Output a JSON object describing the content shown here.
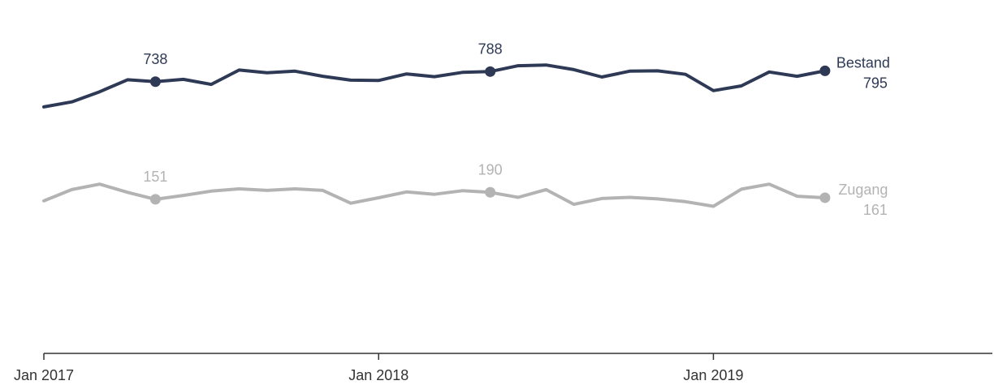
{
  "chart_data": {
    "type": "line",
    "x": [
      "2017-01",
      "2017-02",
      "2017-03",
      "2017-04",
      "2017-05",
      "2017-06",
      "2017-07",
      "2017-08",
      "2017-09",
      "2017-10",
      "2017-11",
      "2017-12",
      "2018-01",
      "2018-02",
      "2018-03",
      "2018-04",
      "2018-05",
      "2018-06",
      "2018-07",
      "2018-08",
      "2018-09",
      "2018-10",
      "2018-11",
      "2018-12",
      "2019-01",
      "2019-02",
      "2019-03",
      "2019-04",
      "2019-05"
    ],
    "xticks": [
      "Jan 2017",
      "Jan 2018",
      "Jan 2019"
    ],
    "xlim": [
      "2017-01",
      "2019-11"
    ],
    "ylim": [
      0,
      900
    ],
    "grid": false,
    "legend": "none",
    "series": [
      {
        "name": "Bestand",
        "color": "#2e3a55",
        "values": [
          635,
          648,
          674,
          705,
          700,
          706,
          693,
          730,
          723,
          727,
          714,
          704,
          703,
          720,
          713,
          724,
          726,
          741,
          743,
          731,
          712,
          727,
          728,
          719,
          677,
          689,
          725,
          714,
          728
        ],
        "markers": [
          {
            "index": 4,
            "label": "738"
          },
          {
            "index": 16,
            "label": "788"
          },
          {
            "index": 28,
            "label": "795"
          }
        ]
      },
      {
        "name": "Zugang",
        "color": "#b3b3b3",
        "values": [
          393,
          422,
          436,
          415,
          397,
          407,
          418,
          424,
          420,
          424,
          420,
          387,
          401,
          416,
          410,
          419,
          415,
          402,
          422,
          384,
          399,
          402,
          398,
          391,
          379,
          423,
          436,
          405,
          401
        ],
        "markers": [
          {
            "index": 4,
            "label": "151"
          },
          {
            "index": 16,
            "label": "190"
          },
          {
            "index": 28,
            "label": "161"
          }
        ]
      }
    ]
  }
}
